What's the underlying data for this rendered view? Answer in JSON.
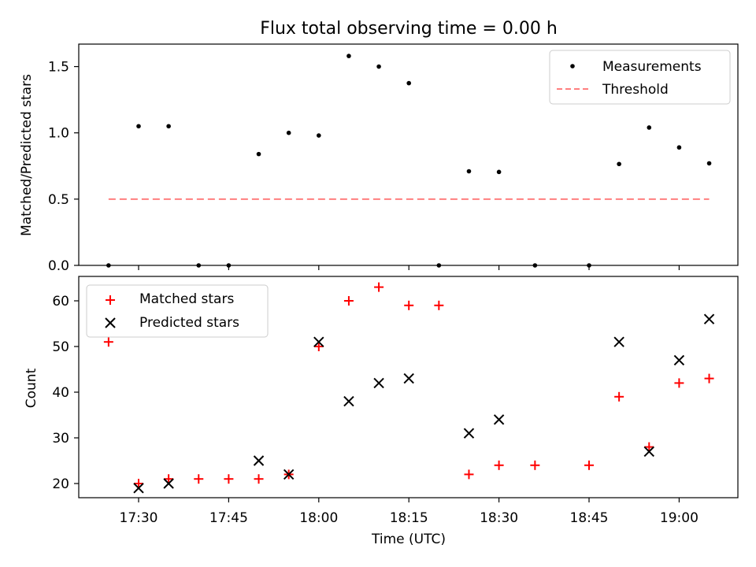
{
  "chart_data": [
    {
      "type": "scatter",
      "title": "Flux total observing time = 0.00 h",
      "ylabel": "Matched/Predicted stars",
      "ylim": [
        0,
        1.65
      ],
      "yticks": [
        "0.0",
        "0.5",
        "1.0",
        "1.5"
      ],
      "legend": {
        "placement": "top-right",
        "entries": [
          "Measurements",
          "Threshold"
        ]
      },
      "colors": {
        "measurements": "#000000",
        "threshold": "#ff7f7f"
      },
      "threshold": {
        "value": 0.5,
        "x_start": "17:25",
        "x_end": "19:05"
      },
      "series": [
        {
          "name": "Measurements",
          "x": [
            "17:25",
            "17:30",
            "17:35",
            "17:40",
            "17:45",
            "17:50",
            "17:55",
            "18:00",
            "18:05",
            "18:10",
            "18:15",
            "18:20",
            "18:25",
            "18:30",
            "18:36",
            "18:45",
            "18:50",
            "18:55",
            "19:00",
            "19:05"
          ],
          "values": [
            0.0,
            1.05,
            1.05,
            0.0,
            0.0,
            0.84,
            1.0,
            0.98,
            1.58,
            1.5,
            1.375,
            0.0,
            0.71,
            0.705,
            0.0,
            0.0,
            0.765,
            1.04,
            0.89,
            0.77
          ]
        }
      ]
    },
    {
      "type": "scatter",
      "xlabel": "Time (UTC)",
      "ylabel": "Count",
      "ylim": [
        17,
        65
      ],
      "yticks": [
        "20",
        "30",
        "40",
        "50",
        "60"
      ],
      "xticks": [
        "17:30",
        "17:45",
        "18:00",
        "18:15",
        "18:30",
        "18:45",
        "19:00"
      ],
      "legend": {
        "placement": "top-left",
        "entries": [
          "Matched stars",
          "Predicted stars"
        ]
      },
      "colors": {
        "matched": "#ff0000",
        "predicted": "#000000"
      },
      "series": [
        {
          "name": "Matched stars",
          "marker": "+",
          "x": [
            "17:25",
            "17:30",
            "17:35",
            "17:40",
            "17:45",
            "17:50",
            "17:55",
            "18:00",
            "18:05",
            "18:10",
            "18:15",
            "18:20",
            "18:25",
            "18:30",
            "18:36",
            "18:45",
            "18:50",
            "18:55",
            "19:00",
            "19:05"
          ],
          "values": [
            51,
            20,
            21,
            21,
            21,
            21,
            22,
            50,
            60,
            63,
            59,
            59,
            22,
            24,
            24,
            24,
            39,
            28,
            42,
            43
          ]
        },
        {
          "name": "Predicted stars",
          "marker": "x",
          "x": [
            "17:30",
            "17:35",
            "17:50",
            "17:55",
            "18:00",
            "18:05",
            "18:10",
            "18:15",
            "18:25",
            "18:30",
            "18:50",
            "18:55",
            "19:00",
            "19:05"
          ],
          "values": [
            19,
            20,
            25,
            22,
            51,
            38,
            42,
            43,
            31,
            34,
            51,
            27,
            47,
            56
          ]
        }
      ]
    }
  ]
}
